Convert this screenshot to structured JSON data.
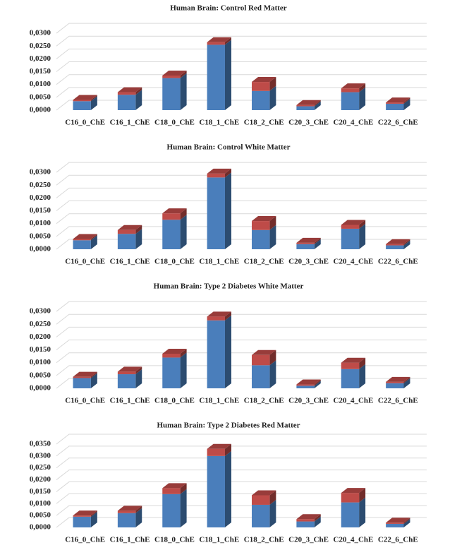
{
  "chart_data": [
    {
      "type": "bar3d-stacked",
      "title": "Human Brain: Control Red Matter",
      "categories": [
        "C16_0_ChE",
        "C16_1_ChE",
        "C18_0_ChE",
        "C18_1_ChE",
        "C18_2_ChE",
        "C20_3_ChE",
        "C20_4_ChE",
        "C22_6_ChE"
      ],
      "series": [
        {
          "color": "#4a7ebb",
          "values": [
            0.0035,
            0.006,
            0.0125,
            0.0255,
            0.0075,
            0.0015,
            0.007,
            0.0025
          ]
        },
        {
          "color": "#be4b48",
          "values": [
            0.0005,
            0.001,
            0.001,
            0.001,
            0.0035,
            0.0005,
            0.0015,
            0.0005
          ]
        }
      ],
      "ylim": [
        0,
        0.0325
      ],
      "yticks": [
        {
          "value": 0,
          "label": "0,0000"
        },
        {
          "value": 0.005,
          "label": "0,0050"
        },
        {
          "value": 0.01,
          "label": "0,0100"
        },
        {
          "value": 0.015,
          "label": "0,0150"
        },
        {
          "value": 0.02,
          "label": "0,0200"
        },
        {
          "value": 0.025,
          "label": "0,0250"
        },
        {
          "value": 0.03,
          "label": "0,0300"
        }
      ],
      "grid": true
    },
    {
      "type": "bar3d-stacked",
      "title": "Human Brain: Control White Matter",
      "categories": [
        "C16_0_ChE",
        "C16_1_ChE",
        "C18_0_ChE",
        "C18_1_ChE",
        "C18_2_ChE",
        "C20_3_ChE",
        "C20_4_ChE",
        "C22_6_ChE"
      ],
      "series": [
        {
          "color": "#4a7ebb",
          "values": [
            0.0035,
            0.006,
            0.0115,
            0.028,
            0.0075,
            0.002,
            0.008,
            0.0015
          ]
        },
        {
          "color": "#be4b48",
          "values": [
            0.0005,
            0.0015,
            0.0025,
            0.0015,
            0.0035,
            0.0005,
            0.0015,
            0.0005
          ]
        }
      ],
      "ylim": [
        0,
        0.0325
      ],
      "yticks": [
        {
          "value": 0,
          "label": "0,0000"
        },
        {
          "value": 0.005,
          "label": "0,0050"
        },
        {
          "value": 0.01,
          "label": "0,0100"
        },
        {
          "value": 0.015,
          "label": "0,0150"
        },
        {
          "value": 0.02,
          "label": "0,0200"
        },
        {
          "value": 0.025,
          "label": "0,0250"
        },
        {
          "value": 0.03,
          "label": "0,0300"
        }
      ],
      "grid": true
    },
    {
      "type": "bar3d-stacked",
      "title": "Human Brain: Type 2 Diabetes  White Matter",
      "categories": [
        "C16_0_ChE",
        "C16_1_ChE",
        "C18_0_ChE",
        "C18_1_ChE",
        "C18_2_ChE",
        "C20_3_ChE",
        "C20_4_ChE",
        "C22_6_ChE"
      ],
      "series": [
        {
          "color": "#4a7ebb",
          "values": [
            0.004,
            0.0055,
            0.012,
            0.0265,
            0.009,
            0.001,
            0.0075,
            0.002
          ]
        },
        {
          "color": "#be4b48",
          "values": [
            0.0005,
            0.001,
            0.0015,
            0.0015,
            0.004,
            0.0005,
            0.0025,
            0.0005
          ]
        }
      ],
      "ylim": [
        0,
        0.0325
      ],
      "yticks": [
        {
          "value": 0,
          "label": "0,0000"
        },
        {
          "value": 0.005,
          "label": "0,0050"
        },
        {
          "value": 0.01,
          "label": "0,0100"
        },
        {
          "value": 0.015,
          "label": "0,0150"
        },
        {
          "value": 0.02,
          "label": "0,0200"
        },
        {
          "value": 0.025,
          "label": "0,0250"
        },
        {
          "value": 0.03,
          "label": "0,0300"
        }
      ],
      "grid": true
    },
    {
      "type": "bar3d-stacked",
      "title": "Human Brain: Type 2 Diabetes  Red Matter",
      "categories": [
        "C16_0_ChE",
        "C16_1_ChE",
        "C18_0_ChE",
        "C18_1_ChE",
        "C18_2_ChE",
        "C20_3_ChE",
        "C20_4_ChE",
        "C22_6_ChE"
      ],
      "series": [
        {
          "color": "#4a7ebb",
          "values": [
            0.0045,
            0.006,
            0.014,
            0.03,
            0.0095,
            0.0025,
            0.0105,
            0.0015
          ]
        },
        {
          "color": "#be4b48",
          "values": [
            0.0005,
            0.001,
            0.0025,
            0.003,
            0.004,
            0.001,
            0.004,
            0.0005
          ]
        }
      ],
      "ylim": [
        0,
        0.035
      ],
      "yticks": [
        {
          "value": 0,
          "label": "0,0000"
        },
        {
          "value": 0.005,
          "label": "0,0050"
        },
        {
          "value": 0.01,
          "label": "0,0100"
        },
        {
          "value": 0.015,
          "label": "0,0150"
        },
        {
          "value": 0.02,
          "label": "0,0200"
        },
        {
          "value": 0.025,
          "label": "0,0250"
        },
        {
          "value": 0.03,
          "label": "0,0300"
        },
        {
          "value": 0.035,
          "label": "0,0350"
        }
      ],
      "grid": true
    }
  ]
}
